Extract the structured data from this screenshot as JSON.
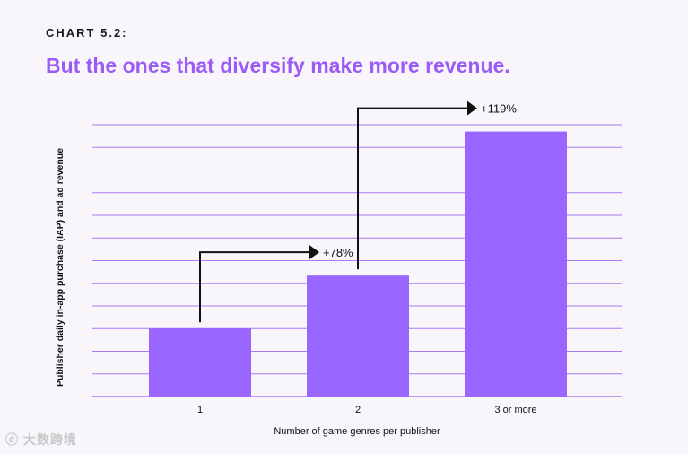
{
  "header": {
    "eyebrow": "CHART 5.2:",
    "title": "But the ones that diversify make more revenue."
  },
  "watermark": "大数跨境",
  "colors": {
    "bar": "#9966ff",
    "grid": "#a97af2",
    "accent": "#9b5cf6",
    "arrow": "#111111"
  },
  "chart_data": {
    "type": "bar",
    "categories": [
      "1",
      "2",
      "3 or more"
    ],
    "values": [
      1.0,
      1.78,
      3.9
    ],
    "xlabel": "Number of game genres per publisher",
    "ylabel": "Publisher daily in-app purchase (IAP) and ad revenue",
    "ylim": [
      0,
      4.0
    ],
    "grid": true,
    "annotations": [
      {
        "from": 0,
        "to": 1,
        "label": "+78%"
      },
      {
        "from": 1,
        "to": 2,
        "label": "+119%"
      }
    ]
  }
}
